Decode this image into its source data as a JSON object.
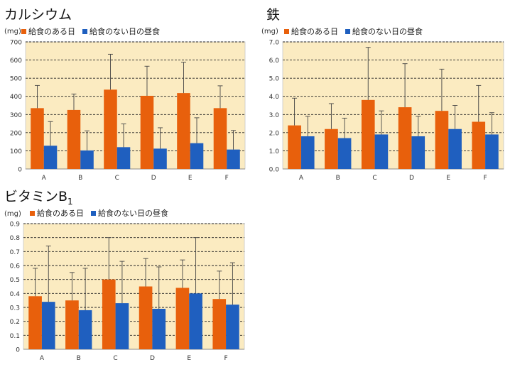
{
  "colors": {
    "school_lunch": "#E8600C",
    "no_lunch": "#1F5FBF",
    "plot_bg": "#FBEBC1",
    "gridline": "#222222",
    "error_bar": "#444444"
  },
  "legend": {
    "school_lunch": "給食のある日",
    "no_lunch": "給食のない日の昼食"
  },
  "chart_data": [
    {
      "type": "bar",
      "title": "カルシウム",
      "title_sub": "",
      "ylabel": "(mg)",
      "categories": [
        "A",
        "B",
        "C",
        "D",
        "E",
        "F"
      ],
      "ylim": [
        0,
        700
      ],
      "ytick_step": 100,
      "ytick_labels": [
        "0",
        "100",
        "200",
        "300",
        "400",
        "500",
        "600",
        "700"
      ],
      "grid": true,
      "legend_position": "top",
      "series": [
        {
          "name": "給食のある日",
          "values": [
            335,
            325,
            437,
            403,
            418,
            335
          ],
          "error": [
            125,
            88,
            195,
            163,
            170,
            123
          ]
        },
        {
          "name": "給食のない日の昼食",
          "values": [
            128,
            102,
            120,
            112,
            142,
            107
          ],
          "error": [
            133,
            108,
            128,
            115,
            140,
            105
          ]
        }
      ]
    },
    {
      "type": "bar",
      "title": "鉄",
      "title_sub": "",
      "ylabel": "(mg)",
      "categories": [
        "A",
        "B",
        "C",
        "D",
        "E",
        "F"
      ],
      "ylim": [
        0,
        7
      ],
      "ytick_step": 1,
      "ytick_labels": [
        "0.0",
        "1.0",
        "2.0",
        "3.0",
        "4.0",
        "5.0",
        "6.0",
        "7.0"
      ],
      "grid": true,
      "legend_position": "top",
      "series": [
        {
          "name": "給食のある日",
          "values": [
            2.4,
            2.2,
            3.8,
            3.4,
            3.2,
            2.6
          ],
          "error": [
            1.5,
            1.4,
            2.9,
            2.4,
            2.3,
            2.0
          ]
        },
        {
          "name": "給食のない日の昼食",
          "values": [
            1.8,
            1.7,
            1.9,
            1.8,
            2.2,
            1.9
          ],
          "error": [
            1.1,
            1.1,
            1.3,
            1.1,
            1.3,
            1.2
          ]
        }
      ]
    },
    {
      "type": "bar",
      "title": "ビタミンB",
      "title_sub": "1",
      "ylabel": "(mg)",
      "categories": [
        "A",
        "B",
        "C",
        "D",
        "E",
        "F"
      ],
      "ylim": [
        0,
        0.9
      ],
      "ytick_step": 0.1,
      "ytick_labels": [
        "0",
        "0.1",
        "0.2",
        "0.3",
        "0.4",
        "0.5",
        "0.6",
        "0.7",
        "0.8",
        "0.9"
      ],
      "grid": true,
      "legend_position": "top",
      "series": [
        {
          "name": "給食のある日",
          "values": [
            0.38,
            0.35,
            0.5,
            0.45,
            0.44,
            0.36
          ],
          "error": [
            0.2,
            0.2,
            0.3,
            0.2,
            0.2,
            0.2
          ]
        },
        {
          "name": "給食のない日の昼食",
          "values": [
            0.34,
            0.28,
            0.33,
            0.29,
            0.4,
            0.32
          ],
          "error": [
            0.4,
            0.3,
            0.3,
            0.3,
            0.4,
            0.3
          ]
        }
      ]
    }
  ]
}
